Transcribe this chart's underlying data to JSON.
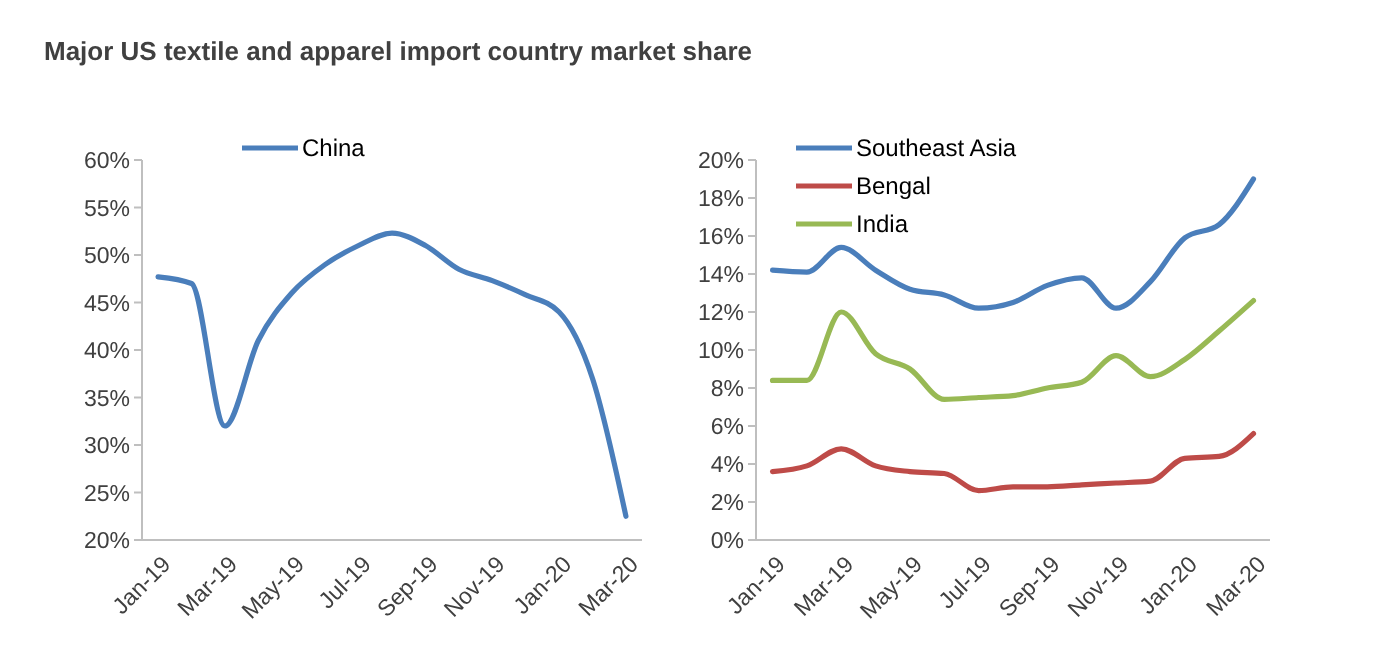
{
  "chart_data": [
    {
      "type": "line",
      "title": "Major US textile and apparel import country market share",
      "categories": [
        "Jan-19",
        null,
        "Mar-19",
        null,
        "May-19",
        null,
        "Jul-19",
        null,
        "Sep-19",
        null,
        "Nov-19",
        null,
        "Jan-20",
        null,
        "Mar-20"
      ],
      "series": [
        {
          "name": "China",
          "color": "#4a7ebb",
          "values": [
            47.7,
            47,
            32,
            41,
            46,
            49,
            51,
            52.3,
            51,
            48.5,
            47.3,
            45.8,
            44,
            37,
            22.5
          ]
        }
      ],
      "ylim": [
        20,
        60
      ],
      "yticks": [
        {
          "value": 20,
          "label": "20%"
        },
        {
          "value": 25,
          "label": "25%"
        },
        {
          "value": 30,
          "label": "30%"
        },
        {
          "value": 35,
          "label": "35%"
        },
        {
          "value": 40,
          "label": "40%"
        },
        {
          "value": 45,
          "label": "45%"
        },
        {
          "value": 50,
          "label": "50%"
        },
        {
          "value": 55,
          "label": "55%"
        },
        {
          "value": 60,
          "label": "60%"
        }
      ],
      "legend": "top",
      "grid": false
    },
    {
      "type": "line",
      "categories": [
        "Jan-19",
        null,
        "Mar-19",
        null,
        "May-19",
        null,
        "Jul-19",
        null,
        "Sep-19",
        null,
        "Nov-19",
        null,
        "Jan-20",
        null,
        "Mar-20"
      ],
      "series": [
        {
          "name": "Southeast Asia",
          "color": "#4a7ebb",
          "values": [
            14.2,
            14.1,
            15.4,
            14.2,
            13.2,
            12.9,
            12.2,
            12.5,
            13.4,
            13.8,
            12.2,
            13.6,
            15.9,
            16.6,
            19.0
          ]
        },
        {
          "name": "Bengal",
          "color": "#be4b48",
          "values": [
            3.6,
            3.9,
            4.8,
            3.9,
            3.6,
            3.5,
            2.6,
            2.8,
            2.8,
            2.9,
            3.0,
            3.1,
            4.3,
            4.4,
            5.6
          ]
        },
        {
          "name": "India",
          "color": "#98b954",
          "values": [
            8.4,
            8.4,
            12.0,
            9.8,
            9.0,
            7.4,
            7.5,
            7.6,
            8.0,
            8.3,
            9.7,
            8.6,
            9.5,
            11.0,
            12.6
          ]
        }
      ],
      "ylim": [
        0,
        20
      ],
      "yticks": [
        {
          "value": 0,
          "label": "0%"
        },
        {
          "value": 2,
          "label": "2%"
        },
        {
          "value": 4,
          "label": "4%"
        },
        {
          "value": 6,
          "label": "6%"
        },
        {
          "value": 8,
          "label": "8%"
        },
        {
          "value": 10,
          "label": "10%"
        },
        {
          "value": 12,
          "label": "12%"
        },
        {
          "value": 14,
          "label": "14%"
        },
        {
          "value": 16,
          "label": "16%"
        },
        {
          "value": 18,
          "label": "18%"
        },
        {
          "value": 20,
          "label": "20%"
        }
      ],
      "legend": "top left",
      "grid": false
    }
  ]
}
